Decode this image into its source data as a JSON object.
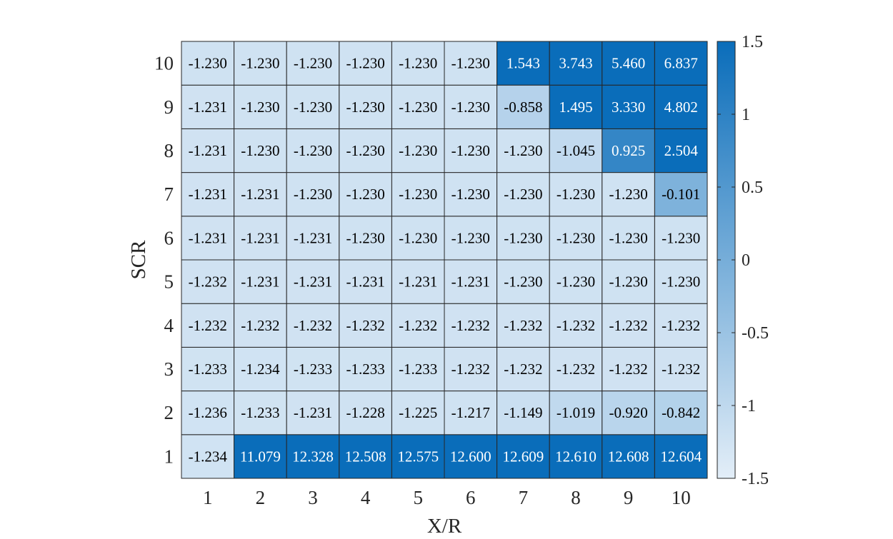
{
  "chart_data": {
    "type": "heatmap",
    "xlabel": "X/R",
    "ylabel": "SCR",
    "x_categories": [
      "1",
      "2",
      "3",
      "4",
      "5",
      "6",
      "7",
      "8",
      "9",
      "10"
    ],
    "y_categories": [
      "1",
      "2",
      "3",
      "4",
      "5",
      "6",
      "7",
      "8",
      "9",
      "10"
    ],
    "values": [
      [
        -1.234,
        11.079,
        12.328,
        12.508,
        12.575,
        12.6,
        12.609,
        12.61,
        12.608,
        12.604
      ],
      [
        -1.236,
        -1.233,
        -1.231,
        -1.228,
        -1.225,
        -1.217,
        -1.149,
        -1.019,
        -0.92,
        -0.842
      ],
      [
        -1.233,
        -1.234,
        -1.233,
        -1.233,
        -1.233,
        -1.232,
        -1.232,
        -1.232,
        -1.232,
        -1.232
      ],
      [
        -1.232,
        -1.232,
        -1.232,
        -1.232,
        -1.232,
        -1.232,
        -1.232,
        -1.232,
        -1.232,
        -1.232
      ],
      [
        -1.232,
        -1.231,
        -1.231,
        -1.231,
        -1.231,
        -1.231,
        -1.23,
        -1.23,
        -1.23,
        -1.23
      ],
      [
        -1.231,
        -1.231,
        -1.231,
        -1.23,
        -1.23,
        -1.23,
        -1.23,
        -1.23,
        -1.23,
        -1.23
      ],
      [
        -1.231,
        -1.231,
        -1.23,
        -1.23,
        -1.23,
        -1.23,
        -1.23,
        -1.23,
        -1.23,
        -0.101
      ],
      [
        -1.231,
        -1.23,
        -1.23,
        -1.23,
        -1.23,
        -1.23,
        -1.23,
        -1.045,
        0.925,
        2.504
      ],
      [
        -1.231,
        -1.23,
        -1.23,
        -1.23,
        -1.23,
        -1.23,
        -0.858,
        1.495,
        3.33,
        4.802
      ],
      [
        -1.23,
        -1.23,
        -1.23,
        -1.23,
        -1.23,
        -1.23,
        1.543,
        3.743,
        5.46,
        6.837
      ]
    ],
    "color_limits": [
      -1.5,
      1.5
    ],
    "colorbar_ticks": [
      "1.5",
      "1",
      "0.5",
      "0",
      "-0.5",
      "-1",
      "-1.5"
    ],
    "colorbar_tick_values": [
      1.5,
      1,
      0.5,
      0,
      -0.5,
      -1,
      -1.5
    ],
    "colormap": {
      "low": "#e3eef8",
      "high": "#0a6dba"
    },
    "text_colors": {
      "dark": "#000000",
      "light": "#ffffff"
    }
  }
}
